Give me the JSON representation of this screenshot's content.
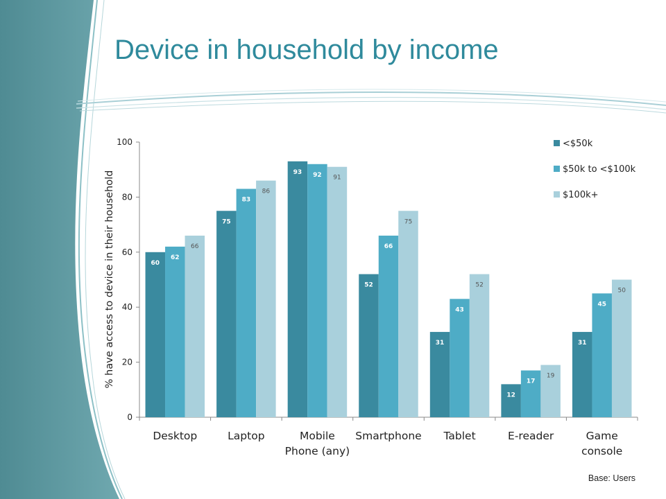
{
  "slide": {
    "title": "Device in household by income",
    "footnote": "Base: Users"
  },
  "colors": {
    "title": "#2f8a9c",
    "band_dark": "#4f8f96",
    "band_light": "#7fb3b8"
  },
  "chart_data": {
    "type": "bar",
    "title": "",
    "xlabel": "",
    "ylabel": "% have access to device in their household",
    "ylim": [
      0,
      100
    ],
    "yticks": [
      0,
      20,
      40,
      60,
      80,
      100
    ],
    "legend_position": "top-right",
    "grid": false,
    "categories": [
      [
        "Desktop"
      ],
      [
        "Laptop"
      ],
      [
        "Mobile",
        "Phone (any)"
      ],
      [
        "Smartphone"
      ],
      [
        "Tablet"
      ],
      [
        "E-reader"
      ],
      [
        "Game",
        "console"
      ]
    ],
    "series": [
      {
        "name": "<$50k",
        "color": "#3a8a9f",
        "label_color": "#ffffff",
        "values": [
          60,
          75,
          93,
          52,
          31,
          12,
          31
        ]
      },
      {
        "name": "$50k to <$100k",
        "color": "#4eacc6",
        "label_color": "#ffffff",
        "values": [
          62,
          83,
          92,
          66,
          43,
          17,
          45
        ]
      },
      {
        "name": "$100k+",
        "color": "#a9d0dc",
        "label_color": "#555555",
        "values": [
          66,
          86,
          91,
          75,
          52,
          19,
          50
        ]
      }
    ]
  }
}
